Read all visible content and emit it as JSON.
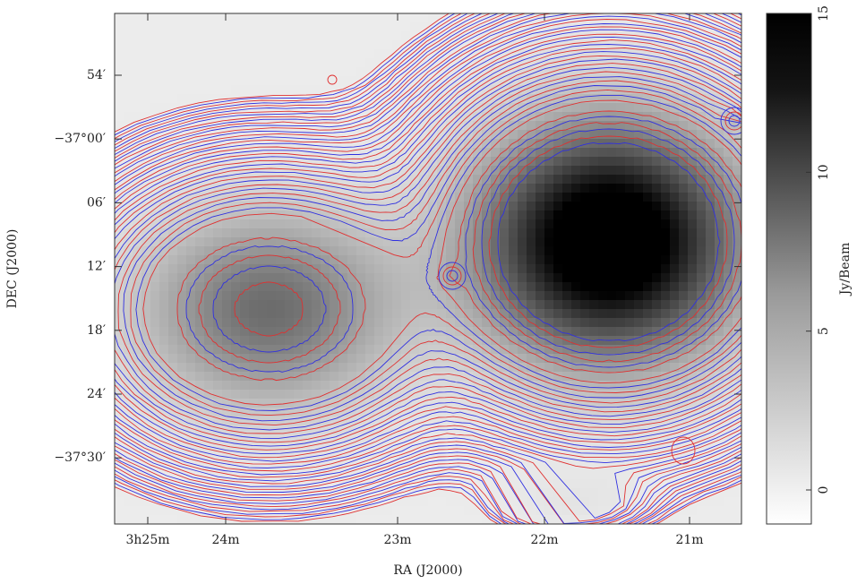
{
  "x_axis": {
    "label": "RA (J2000)",
    "ticks": [
      "3h25m",
      "24m",
      "23m",
      "22m",
      "21m"
    ]
  },
  "y_axis": {
    "label": "DEC (J2000)",
    "ticks": [
      "54′",
      "−37°00′",
      "06′",
      "12′",
      "18′",
      "24′",
      "−37°30′"
    ]
  },
  "colorbar": {
    "label": "Jy/Beam",
    "ticks": [
      15,
      10,
      5,
      0
    ]
  }
}
